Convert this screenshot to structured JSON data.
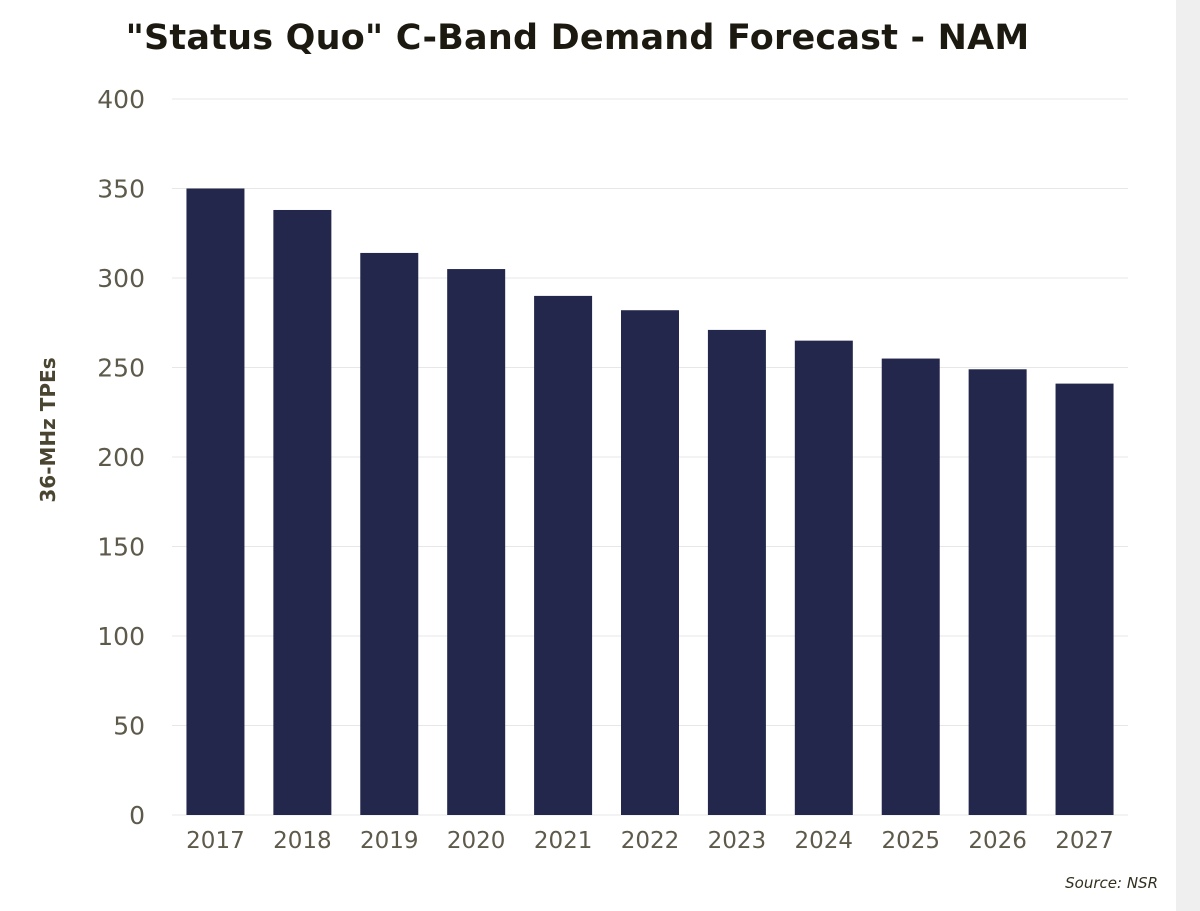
{
  "chart_data": {
    "type": "bar",
    "title": "\"Status Quo\" C-Band Demand Forecast - NAM",
    "xlabel": "",
    "ylabel": "36-MHz TPEs",
    "categories": [
      "2017",
      "2018",
      "2019",
      "2020",
      "2021",
      "2022",
      "2023",
      "2024",
      "2025",
      "2026",
      "2027"
    ],
    "values": [
      350,
      338,
      314,
      305,
      290,
      282,
      271,
      265,
      255,
      249,
      241
    ],
    "ylim": [
      0,
      400
    ],
    "yticks": [
      "0",
      "50",
      "100",
      "150",
      "200",
      "250",
      "300",
      "350",
      "400"
    ],
    "grid": true,
    "legend": "none",
    "bar_color": "#23274b",
    "source": "Source: NSR"
  }
}
